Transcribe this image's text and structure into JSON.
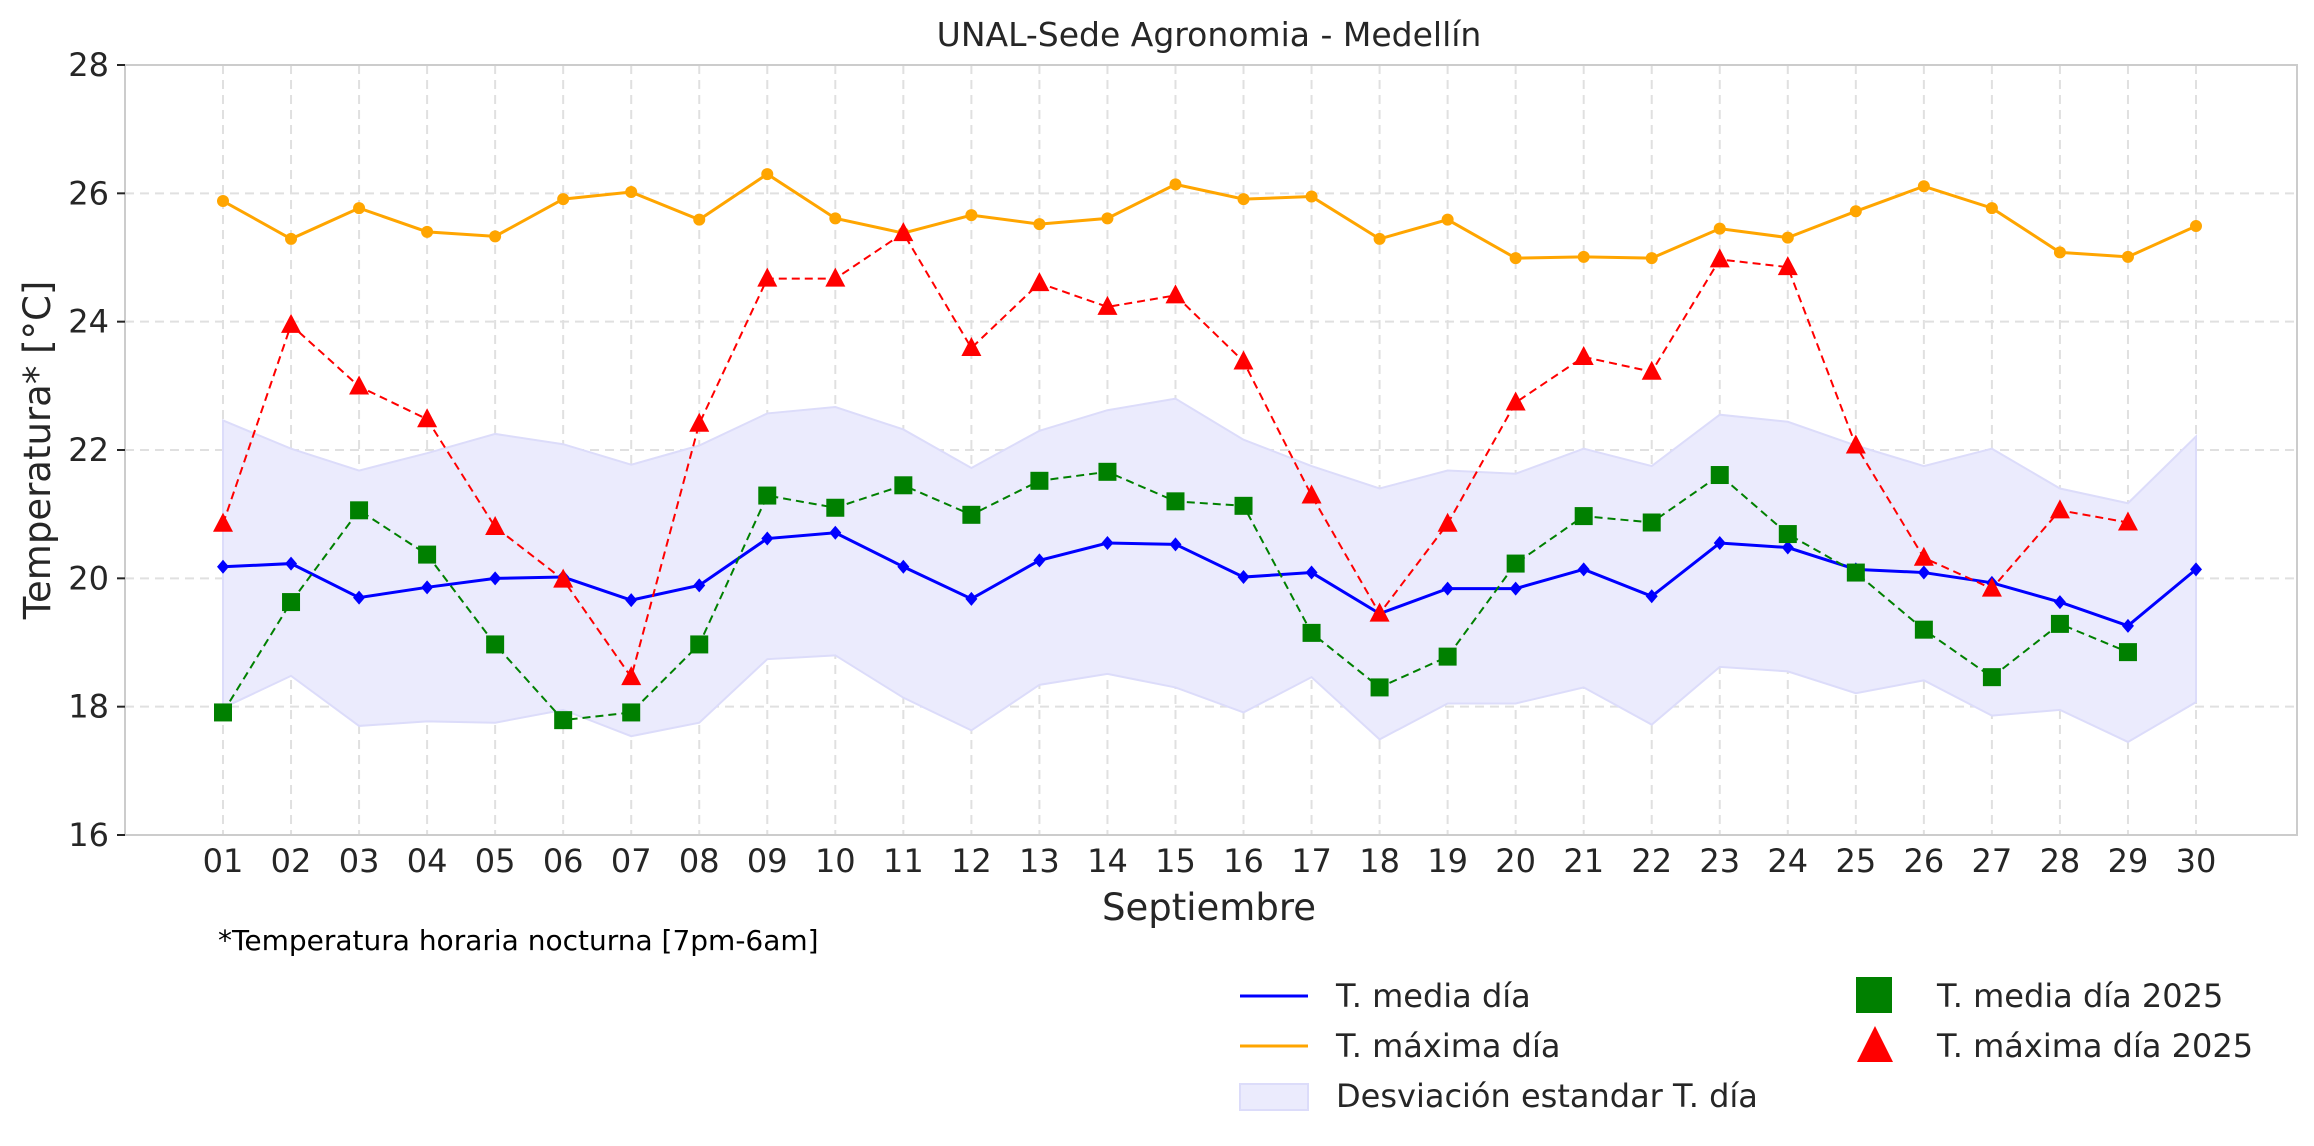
{
  "chart_data": {
    "type": "line",
    "title": "UNAL-Sede Agronomia - Medellín",
    "xlabel": "Septiembre",
    "ylabel": "Temperatura* [°C]",
    "footnote": "*Temperatura horaria nocturna [7pm-6am]",
    "ylim": [
      16,
      28
    ],
    "yticks": [
      "16",
      "18",
      "20",
      "22",
      "24",
      "26",
      "28"
    ],
    "grid": true,
    "legend_position": "bottom-right",
    "categories": [
      "01",
      "02",
      "03",
      "04",
      "05",
      "06",
      "07",
      "08",
      "09",
      "10",
      "11",
      "12",
      "13",
      "14",
      "15",
      "16",
      "17",
      "18",
      "19",
      "20",
      "21",
      "22",
      "23",
      "24",
      "25",
      "26",
      "27",
      "28",
      "29",
      "30"
    ],
    "series": [
      {
        "name": "T. media día",
        "color": "#0000ff",
        "style": "solid",
        "marker": "diamond",
        "values": [
          20.18,
          20.23,
          19.7,
          19.86,
          20.0,
          20.02,
          19.66,
          19.89,
          20.62,
          20.71,
          20.18,
          19.68,
          20.28,
          20.55,
          20.53,
          20.02,
          20.09,
          19.45,
          19.84,
          19.84,
          20.14,
          19.72,
          20.55,
          20.48,
          20.14,
          20.09,
          19.93,
          19.63,
          19.26,
          20.14
        ]
      },
      {
        "name": "T. máxima día",
        "color": "#ffa500",
        "style": "solid",
        "marker": "circle",
        "values": [
          25.88,
          25.29,
          25.77,
          25.4,
          25.33,
          25.91,
          26.02,
          25.59,
          26.3,
          25.61,
          25.38,
          25.66,
          25.52,
          25.61,
          26.14,
          25.91,
          25.95,
          25.29,
          25.59,
          24.99,
          25.01,
          24.99,
          25.45,
          25.31,
          25.72,
          26.11,
          25.77,
          25.08,
          25.01,
          25.49
        ]
      },
      {
        "name": "T. media día 2025",
        "color": "#008000",
        "style": "dashed",
        "marker": "square",
        "values": [
          17.91,
          19.63,
          21.06,
          20.37,
          18.97,
          17.79,
          17.91,
          18.97,
          21.29,
          21.1,
          21.45,
          20.99,
          21.52,
          21.66,
          21.2,
          21.13,
          19.15,
          18.3,
          18.78,
          20.23,
          20.97,
          20.87,
          21.61,
          20.69,
          20.09,
          19.2,
          18.46,
          19.29,
          18.85,
          null
        ]
      },
      {
        "name": "T. máxima día 2025",
        "color": "#ff0000",
        "style": "dashed",
        "marker": "triangle",
        "values": [
          20.85,
          23.95,
          22.99,
          22.48,
          20.8,
          19.98,
          18.46,
          22.41,
          24.67,
          24.67,
          25.38,
          23.59,
          24.6,
          24.23,
          24.41,
          23.38,
          21.29,
          19.45,
          20.85,
          22.74,
          23.45,
          23.22,
          24.97,
          24.85,
          22.07,
          20.32,
          19.84,
          21.06,
          20.87,
          null
        ]
      }
    ],
    "band": {
      "name": "Desviación estandar T. día",
      "color": "#ebebfd",
      "upper": [
        22.46,
        22.02,
        21.68,
        21.95,
        22.25,
        22.09,
        21.77,
        22.07,
        22.57,
        22.67,
        22.32,
        21.72,
        22.3,
        22.62,
        22.8,
        22.16,
        21.75,
        21.4,
        21.68,
        21.63,
        22.02,
        21.75,
        22.55,
        22.44,
        22.07,
        21.75,
        22.02,
        21.4,
        21.17,
        22.21
      ],
      "lower": [
        17.98,
        18.48,
        17.7,
        17.77,
        17.75,
        17.95,
        17.54,
        17.75,
        18.74,
        18.8,
        18.14,
        17.63,
        18.34,
        18.51,
        18.3,
        17.91,
        18.46,
        17.49,
        18.05,
        18.05,
        18.3,
        17.72,
        18.62,
        18.55,
        18.21,
        18.41,
        17.86,
        17.95,
        17.45,
        18.07
      ]
    },
    "legend": [
      {
        "label": "T. media día",
        "kind": "line",
        "color": "#0000ff"
      },
      {
        "label": "T. máxima día",
        "kind": "line",
        "color": "#ffa500"
      },
      {
        "label": "Desviación estandar T. día",
        "kind": "patch",
        "color": "#ebebfd"
      },
      {
        "label": "T. media día 2025",
        "kind": "square",
        "color": "#008000"
      },
      {
        "label": "T. máxima día 2025",
        "kind": "triangle",
        "color": "#ff0000"
      }
    ]
  }
}
